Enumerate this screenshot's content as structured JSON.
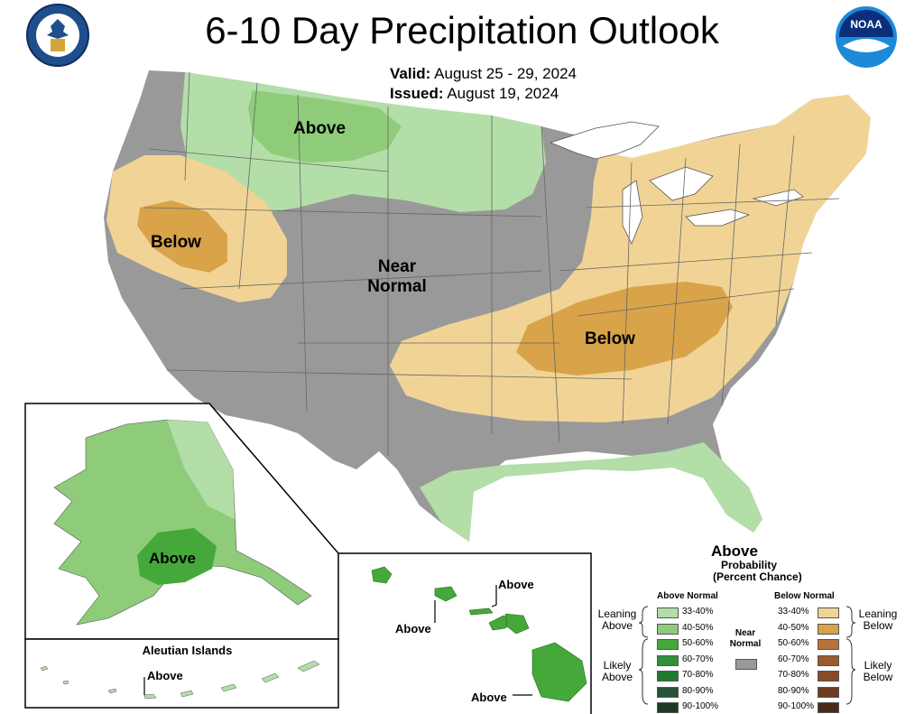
{
  "header": {
    "title": "6-10 Day Precipitation Outlook",
    "valid_label": "Valid:",
    "valid_value": "August 25 - 29, 2024",
    "issued_label": "Issued:",
    "issued_value": "August 19, 2024"
  },
  "logos": {
    "left": "Department of Commerce seal",
    "right_text": "NOAA"
  },
  "map": {
    "labels": {
      "north_above": "Above",
      "west_below": "Below",
      "center_near_line1": "Near",
      "center_near_line2": "Normal",
      "southeast_below": "Below",
      "alaska_above": "Above",
      "hawaii_above_1": "Above",
      "hawaii_above_2": "Above",
      "hawaii_above_3": "Above",
      "aleutian_above": "Above"
    },
    "inset_title_aleutian": "Aleutian Islands",
    "colors": {
      "near_normal": "#999999",
      "above_33_40": "#b3dea8",
      "above_40_50": "#8fcc7a",
      "above_50_60": "#45a83a",
      "below_33_40": "#f1d495",
      "below_40_50": "#d9a34a"
    }
  },
  "legend": {
    "title": "Above",
    "prob_line1": "Probability",
    "prob_line2": "(Percent Chance)",
    "above_header": "Above Normal",
    "below_header": "Below Normal",
    "near_label_1": "Near",
    "near_label_2": "Normal",
    "leaning_above_1": "Leaning",
    "leaning_above_2": "Above",
    "likely_above_1": "Likely",
    "likely_above_2": "Above",
    "leaning_below_1": "Leaning",
    "leaning_below_2": "Below",
    "likely_below_1": "Likely",
    "likely_below_2": "Below",
    "above_rows": [
      {
        "range": "33-40%",
        "color": "#b3dea8"
      },
      {
        "range": "40-50%",
        "color": "#8fcc7a"
      },
      {
        "range": "50-60%",
        "color": "#45a83a"
      },
      {
        "range": "60-70%",
        "color": "#2f8f3a"
      },
      {
        "range": "70-80%",
        "color": "#1f7a30"
      },
      {
        "range": "80-90%",
        "color": "#28523a"
      },
      {
        "range": "90-100%",
        "color": "#1e3a24"
      }
    ],
    "below_rows": [
      {
        "range": "33-40%",
        "color": "#f1d495"
      },
      {
        "range": "40-50%",
        "color": "#d9a34a"
      },
      {
        "range": "50-60%",
        "color": "#b8733a"
      },
      {
        "range": "60-70%",
        "color": "#9c5a2e"
      },
      {
        "range": "70-80%",
        "color": "#8a4a28"
      },
      {
        "range": "80-90%",
        "color": "#6e3a22"
      },
      {
        "range": "90-100%",
        "color": "#4a2a1a"
      }
    ],
    "near_color": "#999999"
  }
}
